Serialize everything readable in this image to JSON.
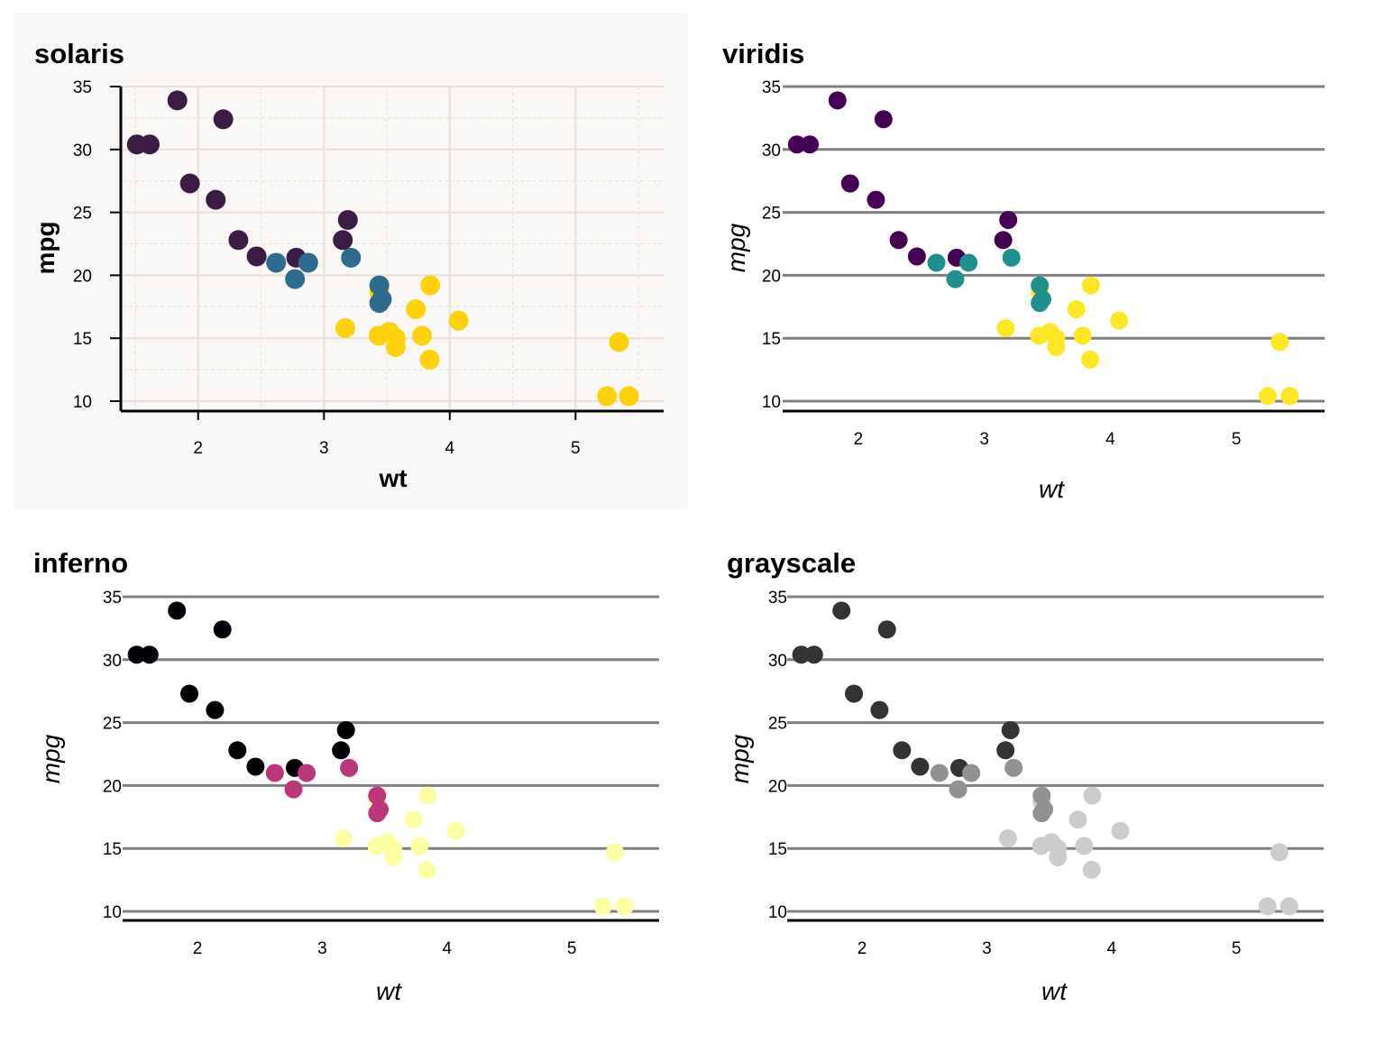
{
  "chart_data": [
    {
      "type": "scatter",
      "title": "solaris",
      "xlabel": "wt",
      "ylabel": "mpg",
      "xlim": [
        1.4,
        5.7
      ],
      "ylim": [
        9.3,
        35
      ],
      "x_ticks": [
        2,
        3,
        4,
        5
      ],
      "y_ticks": [
        10,
        15,
        20,
        25,
        30,
        35
      ],
      "grid": "major and minor, both axes",
      "background": "#f9f8f6",
      "colors": {
        "low": "#3b1c45",
        "mid": "#2e6b8e",
        "high": "#fdd20a"
      },
      "points": [
        {
          "x": 1.513,
          "y": 30.4,
          "g": "low"
        },
        {
          "x": 1.615,
          "y": 30.4,
          "g": "low"
        },
        {
          "x": 1.835,
          "y": 33.9,
          "g": "low"
        },
        {
          "x": 1.935,
          "y": 27.3,
          "g": "low"
        },
        {
          "x": 2.14,
          "y": 26.0,
          "g": "low"
        },
        {
          "x": 2.2,
          "y": 32.4,
          "g": "low"
        },
        {
          "x": 2.32,
          "y": 22.8,
          "g": "low"
        },
        {
          "x": 2.465,
          "y": 21.5,
          "g": "low"
        },
        {
          "x": 2.62,
          "y": 21.0,
          "g": "mid"
        },
        {
          "x": 2.77,
          "y": 19.7,
          "g": "mid"
        },
        {
          "x": 2.78,
          "y": 21.4,
          "g": "low"
        },
        {
          "x": 2.875,
          "y": 21.0,
          "g": "mid"
        },
        {
          "x": 3.15,
          "y": 22.8,
          "g": "low"
        },
        {
          "x": 3.17,
          "y": 15.8,
          "g": "high"
        },
        {
          "x": 3.19,
          "y": 24.4,
          "g": "low"
        },
        {
          "x": 3.215,
          "y": 21.4,
          "g": "mid"
        },
        {
          "x": 3.435,
          "y": 15.2,
          "g": "high"
        },
        {
          "x": 3.44,
          "y": 18.7,
          "g": "high"
        },
        {
          "x": 3.44,
          "y": 19.2,
          "g": "mid"
        },
        {
          "x": 3.44,
          "y": 17.8,
          "g": "mid"
        },
        {
          "x": 3.46,
          "y": 18.1,
          "g": "mid"
        },
        {
          "x": 3.52,
          "y": 15.5,
          "g": "high"
        },
        {
          "x": 3.57,
          "y": 14.3,
          "g": "high"
        },
        {
          "x": 3.57,
          "y": 15.0,
          "g": "high"
        },
        {
          "x": 3.73,
          "y": 17.3,
          "g": "high"
        },
        {
          "x": 3.78,
          "y": 15.2,
          "g": "high"
        },
        {
          "x": 3.84,
          "y": 13.3,
          "g": "high"
        },
        {
          "x": 3.845,
          "y": 19.2,
          "g": "high"
        },
        {
          "x": 4.07,
          "y": 16.4,
          "g": "high"
        },
        {
          "x": 5.25,
          "y": 10.4,
          "g": "high"
        },
        {
          "x": 5.345,
          "y": 14.7,
          "g": "high"
        },
        {
          "x": 5.424,
          "y": 10.4,
          "g": "high"
        }
      ]
    },
    {
      "type": "scatter",
      "title": "viridis",
      "xlabel": "wt",
      "ylabel": "mpg",
      "xlim": [
        1.4,
        5.7
      ],
      "ylim": [
        9.3,
        35
      ],
      "x_ticks": [
        2,
        3,
        4,
        5
      ],
      "y_ticks": [
        10,
        15,
        20,
        25,
        30,
        35
      ],
      "grid": "horizontal major only",
      "colors": {
        "low": "#440154",
        "mid": "#21908c",
        "high": "#fde725"
      },
      "points": "same as solaris"
    },
    {
      "type": "scatter",
      "title": "inferno",
      "xlabel": "wt",
      "ylabel": "mpg",
      "xlim": [
        1.4,
        5.7
      ],
      "ylim": [
        9.3,
        35
      ],
      "x_ticks": [
        2,
        3,
        4,
        5
      ],
      "y_ticks": [
        10,
        15,
        20,
        25,
        30,
        35
      ],
      "grid": "horizontal major only",
      "colors": {
        "low": "#000004",
        "mid": "#bc3779",
        "high": "#fcffa4"
      },
      "points": "same as solaris"
    },
    {
      "type": "scatter",
      "title": "grayscale",
      "xlabel": "wt",
      "ylabel": "mpg",
      "xlim": [
        1.4,
        5.7
      ],
      "ylim": [
        9.3,
        35
      ],
      "x_ticks": [
        2,
        3,
        4,
        5
      ],
      "y_ticks": [
        10,
        15,
        20,
        25,
        30,
        35
      ],
      "grid": "horizontal major only",
      "colors": {
        "low": "#333333",
        "mid": "#919191",
        "high": "#cccccc"
      },
      "points": "same as solaris"
    }
  ]
}
